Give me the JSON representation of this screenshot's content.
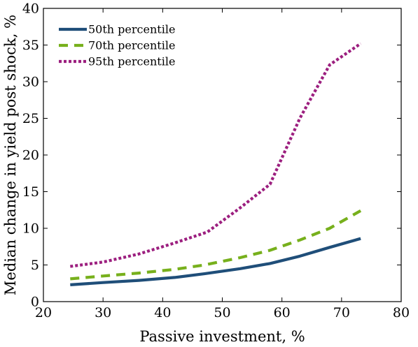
{
  "chart_data": {
    "type": "line",
    "title": "",
    "xlabel": "Passive investment, %",
    "ylabel": "Median change in yield post shock, %",
    "xlim": [
      20,
      80
    ],
    "ylim": [
      0,
      40
    ],
    "xticks": [
      "20",
      "30",
      "40",
      "50",
      "60",
      "70",
      "80"
    ],
    "yticks": [
      "0",
      "5",
      "10",
      "15",
      "20",
      "25",
      "30",
      "35",
      "40"
    ],
    "grid": false,
    "legend_position": "top-left",
    "series": [
      {
        "name": "50th percentile",
        "color": "#1f4e79",
        "style": "solid",
        "x": [
          24.5,
          30,
          36,
          42,
          47,
          53,
          58,
          63,
          68,
          73.2
        ],
        "y": [
          2.3,
          2.6,
          2.9,
          3.3,
          3.8,
          4.5,
          5.2,
          6.2,
          7.4,
          8.6
        ]
      },
      {
        "name": "70th percentile",
        "color": "#77b01c",
        "style": "dashed",
        "x": [
          24.5,
          30,
          36,
          42,
          47,
          53,
          58,
          63,
          68,
          73.2
        ],
        "y": [
          3.1,
          3.5,
          3.9,
          4.4,
          5.0,
          6.0,
          7.0,
          8.4,
          10.0,
          12.4
        ]
      },
      {
        "name": "95th percentile",
        "color": "#9c1f7f",
        "style": "dotted",
        "x": [
          24.5,
          30,
          36,
          42,
          47.5,
          53,
          58,
          63,
          68,
          73.2
        ],
        "y": [
          4.8,
          5.4,
          6.5,
          8.0,
          9.5,
          12.8,
          16.0,
          25.0,
          32.3,
          35.2
        ]
      }
    ]
  }
}
